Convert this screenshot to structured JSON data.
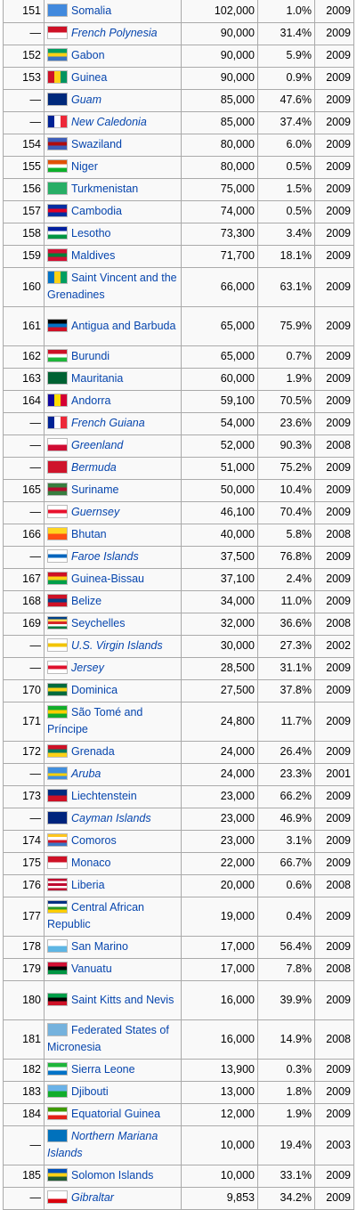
{
  "rows": [
    {
      "rank": "151",
      "country": "Somalia",
      "users": "102,000",
      "pct": "1.0%",
      "year": "2009",
      "dep": false,
      "flag": [
        "#4189dd",
        "#4189dd"
      ]
    },
    {
      "rank": "—",
      "country": "French Polynesia",
      "users": "90,000",
      "pct": "31.4%",
      "year": "2009",
      "dep": true,
      "flag": [
        "#ce1126",
        "#ffffff"
      ]
    },
    {
      "rank": "152",
      "country": "Gabon",
      "users": "90,000",
      "pct": "5.9%",
      "year": "2009",
      "dep": false,
      "flag": [
        "#009e60",
        "#fcd116",
        "#3a75c4"
      ]
    },
    {
      "rank": "153",
      "country": "Guinea",
      "users": "90,000",
      "pct": "0.9%",
      "year": "2009",
      "dep": false,
      "flag": [
        "#ce1126",
        "#fcd116",
        "#009460"
      ],
      "vertical": true
    },
    {
      "rank": "—",
      "country": "Guam",
      "users": "85,000",
      "pct": "47.6%",
      "year": "2009",
      "dep": true,
      "flag": [
        "#00297b",
        "#00297b"
      ]
    },
    {
      "rank": "—",
      "country": "New Caledonia",
      "users": "85,000",
      "pct": "37.4%",
      "year": "2009",
      "dep": true,
      "flag": [
        "#002395",
        "#ffffff",
        "#ed2939"
      ],
      "vertical": true
    },
    {
      "rank": "154",
      "country": "Swaziland",
      "users": "80,000",
      "pct": "6.0%",
      "year": "2009",
      "dep": false,
      "flag": [
        "#3e5eb9",
        "#b10c0c",
        "#3e5eb9"
      ]
    },
    {
      "rank": "155",
      "country": "Niger",
      "users": "80,000",
      "pct": "0.5%",
      "year": "2009",
      "dep": false,
      "flag": [
        "#e05206",
        "#ffffff",
        "#0db02b"
      ]
    },
    {
      "rank": "156",
      "country": "Turkmenistan",
      "users": "75,000",
      "pct": "1.5%",
      "year": "2009",
      "dep": false,
      "flag": [
        "#28ae66",
        "#28ae66"
      ]
    },
    {
      "rank": "157",
      "country": "Cambodia",
      "users": "74,000",
      "pct": "0.5%",
      "year": "2009",
      "dep": false,
      "flag": [
        "#032ea1",
        "#e00025",
        "#032ea1"
      ]
    },
    {
      "rank": "158",
      "country": "Lesotho",
      "users": "73,300",
      "pct": "3.4%",
      "year": "2009",
      "dep": false,
      "flag": [
        "#00209f",
        "#ffffff",
        "#009543"
      ]
    },
    {
      "rank": "159",
      "country": "Maldives",
      "users": "71,700",
      "pct": "18.1%",
      "year": "2009",
      "dep": false,
      "flag": [
        "#d21034",
        "#007e3a",
        "#d21034"
      ]
    },
    {
      "rank": "160",
      "country": "Saint Vincent and the Grenadines",
      "users": "66,000",
      "pct": "63.1%",
      "year": "2009",
      "dep": false,
      "tall": true,
      "flag": [
        "#0072c6",
        "#fcd116",
        "#009e60"
      ],
      "vertical": true
    },
    {
      "rank": "161",
      "country": "Antigua and Barbuda",
      "users": "65,000",
      "pct": "75.9%",
      "year": "2009",
      "dep": false,
      "tall": true,
      "flag": [
        "#000000",
        "#0072c6",
        "#ce1126"
      ]
    },
    {
      "rank": "162",
      "country": "Burundi",
      "users": "65,000",
      "pct": "0.7%",
      "year": "2009",
      "dep": false,
      "flag": [
        "#ce1126",
        "#ffffff",
        "#1eb53a"
      ]
    },
    {
      "rank": "163",
      "country": "Mauritania",
      "users": "60,000",
      "pct": "1.9%",
      "year": "2009",
      "dep": false,
      "flag": [
        "#006233",
        "#006233"
      ]
    },
    {
      "rank": "164",
      "country": "Andorra",
      "users": "59,100",
      "pct": "70.5%",
      "year": "2009",
      "dep": false,
      "flag": [
        "#10069f",
        "#fedd00",
        "#d50032"
      ],
      "vertical": true
    },
    {
      "rank": "—",
      "country": "French Guiana",
      "users": "54,000",
      "pct": "23.6%",
      "year": "2009",
      "dep": true,
      "flag": [
        "#002395",
        "#ffffff",
        "#ed2939"
      ],
      "vertical": true
    },
    {
      "rank": "—",
      "country": "Greenland",
      "users": "52,000",
      "pct": "90.3%",
      "year": "2008",
      "dep": true,
      "flag": [
        "#ffffff",
        "#d00c33"
      ]
    },
    {
      "rank": "—",
      "country": "Bermuda",
      "users": "51,000",
      "pct": "75.2%",
      "year": "2009",
      "dep": true,
      "flag": [
        "#cf142b",
        "#cf142b"
      ]
    },
    {
      "rank": "165",
      "country": "Suriname",
      "users": "50,000",
      "pct": "10.4%",
      "year": "2009",
      "dep": false,
      "flag": [
        "#377e3f",
        "#b40a2d",
        "#377e3f"
      ]
    },
    {
      "rank": "—",
      "country": "Guernsey",
      "users": "46,100",
      "pct": "70.4%",
      "year": "2009",
      "dep": true,
      "flag": [
        "#ffffff",
        "#e8112d",
        "#ffffff"
      ]
    },
    {
      "rank": "166",
      "country": "Bhutan",
      "users": "40,000",
      "pct": "5.8%",
      "year": "2008",
      "dep": false,
      "flag": [
        "#ffd520",
        "#ff4e12"
      ]
    },
    {
      "rank": "—",
      "country": "Faroe Islands",
      "users": "37,500",
      "pct": "76.8%",
      "year": "2009",
      "dep": true,
      "flag": [
        "#ffffff",
        "#0065bd",
        "#ffffff"
      ]
    },
    {
      "rank": "167",
      "country": "Guinea-Bissau",
      "users": "37,100",
      "pct": "2.4%",
      "year": "2009",
      "dep": false,
      "flag": [
        "#ce1126",
        "#fcd116",
        "#009e49"
      ]
    },
    {
      "rank": "168",
      "country": "Belize",
      "users": "34,000",
      "pct": "11.0%",
      "year": "2009",
      "dep": false,
      "flag": [
        "#ce1126",
        "#003f87",
        "#ce1126"
      ]
    },
    {
      "rank": "169",
      "country": "Seychelles",
      "users": "32,000",
      "pct": "36.6%",
      "year": "2008",
      "dep": false,
      "flag": [
        "#003f87",
        "#fcd856",
        "#d62828",
        "#ffffff",
        "#007a3d"
      ]
    },
    {
      "rank": "—",
      "country": "U.S. Virgin Islands",
      "users": "30,000",
      "pct": "27.3%",
      "year": "2002",
      "dep": true,
      "flag": [
        "#ffffff",
        "#f2c400",
        "#ffffff"
      ]
    },
    {
      "rank": "—",
      "country": "Jersey",
      "users": "28,500",
      "pct": "31.1%",
      "year": "2009",
      "dep": true,
      "flag": [
        "#ffffff",
        "#df112d",
        "#ffffff"
      ]
    },
    {
      "rank": "170",
      "country": "Dominica",
      "users": "27,500",
      "pct": "37.8%",
      "year": "2009",
      "dep": false,
      "flag": [
        "#006b3f",
        "#fcd116",
        "#006b3f"
      ]
    },
    {
      "rank": "171",
      "country": "São Tomé and Príncipe",
      "users": "24,800",
      "pct": "11.7%",
      "year": "2009",
      "dep": false,
      "tall": true,
      "flag": [
        "#12ad2b",
        "#ffce00",
        "#12ad2b"
      ]
    },
    {
      "rank": "172",
      "country": "Grenada",
      "users": "24,000",
      "pct": "26.4%",
      "year": "2009",
      "dep": false,
      "flag": [
        "#ce1126",
        "#007a5e",
        "#fcd116"
      ]
    },
    {
      "rank": "—",
      "country": "Aruba",
      "users": "24,000",
      "pct": "23.3%",
      "year": "2001",
      "dep": true,
      "flag": [
        "#418fde",
        "#418fde",
        "#ffd100",
        "#418fde"
      ]
    },
    {
      "rank": "173",
      "country": "Liechtenstein",
      "users": "23,000",
      "pct": "66.2%",
      "year": "2009",
      "dep": false,
      "flag": [
        "#002b7f",
        "#ce1126"
      ]
    },
    {
      "rank": "—",
      "country": "Cayman Islands",
      "users": "23,000",
      "pct": "46.9%",
      "year": "2009",
      "dep": true,
      "flag": [
        "#00247d",
        "#00247d"
      ]
    },
    {
      "rank": "174",
      "country": "Comoros",
      "users": "23,000",
      "pct": "3.1%",
      "year": "2009",
      "dep": false,
      "flag": [
        "#ffc61e",
        "#ffffff",
        "#ce1126",
        "#3a75c4"
      ]
    },
    {
      "rank": "175",
      "country": "Monaco",
      "users": "22,000",
      "pct": "66.7%",
      "year": "2009",
      "dep": false,
      "flag": [
        "#ce1126",
        "#ffffff"
      ]
    },
    {
      "rank": "176",
      "country": "Liberia",
      "users": "20,000",
      "pct": "0.6%",
      "year": "2008",
      "dep": false,
      "flag": [
        "#bf0a30",
        "#ffffff",
        "#bf0a30",
        "#ffffff",
        "#bf0a30"
      ]
    },
    {
      "rank": "177",
      "country": "Central African Republic",
      "users": "19,000",
      "pct": "0.4%",
      "year": "2009",
      "dep": false,
      "tall": true,
      "flag": [
        "#003082",
        "#ffffff",
        "#289728",
        "#ffce00"
      ]
    },
    {
      "rank": "178",
      "country": "San Marino",
      "users": "17,000",
      "pct": "56.4%",
      "year": "2009",
      "dep": false,
      "flag": [
        "#ffffff",
        "#5eb6e4"
      ]
    },
    {
      "rank": "179",
      "country": "Vanuatu",
      "users": "17,000",
      "pct": "7.8%",
      "year": "2008",
      "dep": false,
      "flag": [
        "#d21034",
        "#000000",
        "#009543"
      ]
    },
    {
      "rank": "180",
      "country": "Saint Kitts and Nevis",
      "users": "16,000",
      "pct": "39.9%",
      "year": "2009",
      "dep": false,
      "tall": true,
      "flag": [
        "#009e49",
        "#000000",
        "#ce1126"
      ]
    },
    {
      "rank": "181",
      "country": "Federated States of Micronesia",
      "users": "16,000",
      "pct": "14.9%",
      "year": "2008",
      "dep": false,
      "tall": true,
      "flag": [
        "#75b2dd",
        "#75b2dd"
      ]
    },
    {
      "rank": "182",
      "country": "Sierra Leone",
      "users": "13,900",
      "pct": "0.3%",
      "year": "2009",
      "dep": false,
      "flag": [
        "#1eb53a",
        "#ffffff",
        "#0072c6"
      ]
    },
    {
      "rank": "183",
      "country": "Djibouti",
      "users": "13,000",
      "pct": "1.8%",
      "year": "2009",
      "dep": false,
      "flag": [
        "#6ab2e7",
        "#12ad2b"
      ]
    },
    {
      "rank": "184",
      "country": "Equatorial Guinea",
      "users": "12,000",
      "pct": "1.9%",
      "year": "2009",
      "dep": false,
      "flag": [
        "#3e9a00",
        "#ffffff",
        "#e32118"
      ]
    },
    {
      "rank": "—",
      "country": "Northern Mariana Islands",
      "users": "10,000",
      "pct": "19.4%",
      "year": "2003",
      "dep": true,
      "tall": true,
      "flag": [
        "#0071bc",
        "#0071bc"
      ]
    },
    {
      "rank": "185",
      "country": "Solomon Islands",
      "users": "10,000",
      "pct": "33.1%",
      "year": "2009",
      "dep": false,
      "flag": [
        "#0051ba",
        "#fcd116",
        "#215b33"
      ]
    },
    {
      "rank": "—",
      "country": "Gibraltar",
      "users": "9,853",
      "pct": "34.2%",
      "year": "2009",
      "dep": true,
      "flag": [
        "#ffffff",
        "#ffffff",
        "#da000c"
      ]
    }
  ]
}
